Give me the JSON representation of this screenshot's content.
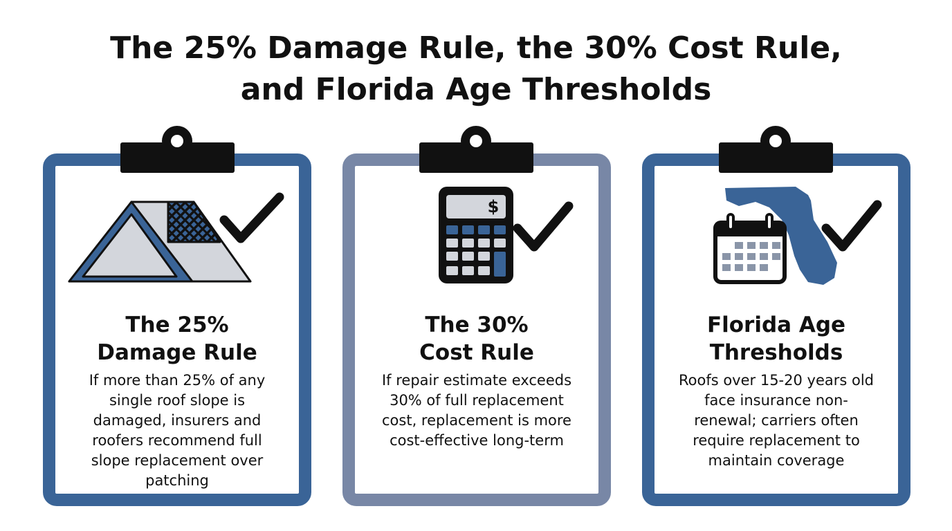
{
  "title": [
    "The 25% Damage Rule, the 30% Cost Rule,",
    "and Florida Age Thresholds"
  ],
  "cards": [
    {
      "heading": [
        "The 25%",
        "Damage Rule"
      ],
      "body": [
        "If more than 25% of any",
        "single roof slope is",
        "damaged, insurers and",
        "roofers recommend full",
        "slope replacement over",
        "patching"
      ]
    },
    {
      "heading": [
        "The 30%",
        "Cost Rule"
      ],
      "body": [
        "If repair estimate exceeds",
        "30% of full replacement",
        "cost, replacement is more",
        "cost-effective long-term"
      ]
    },
    {
      "heading": [
        "Florida Age",
        "Thresholds"
      ],
      "body": [
        "Roofs over 15-20 years old",
        "face insurance non-",
        "renewal; carriers often",
        "require replacement to",
        "maintain coverage"
      ]
    }
  ]
}
